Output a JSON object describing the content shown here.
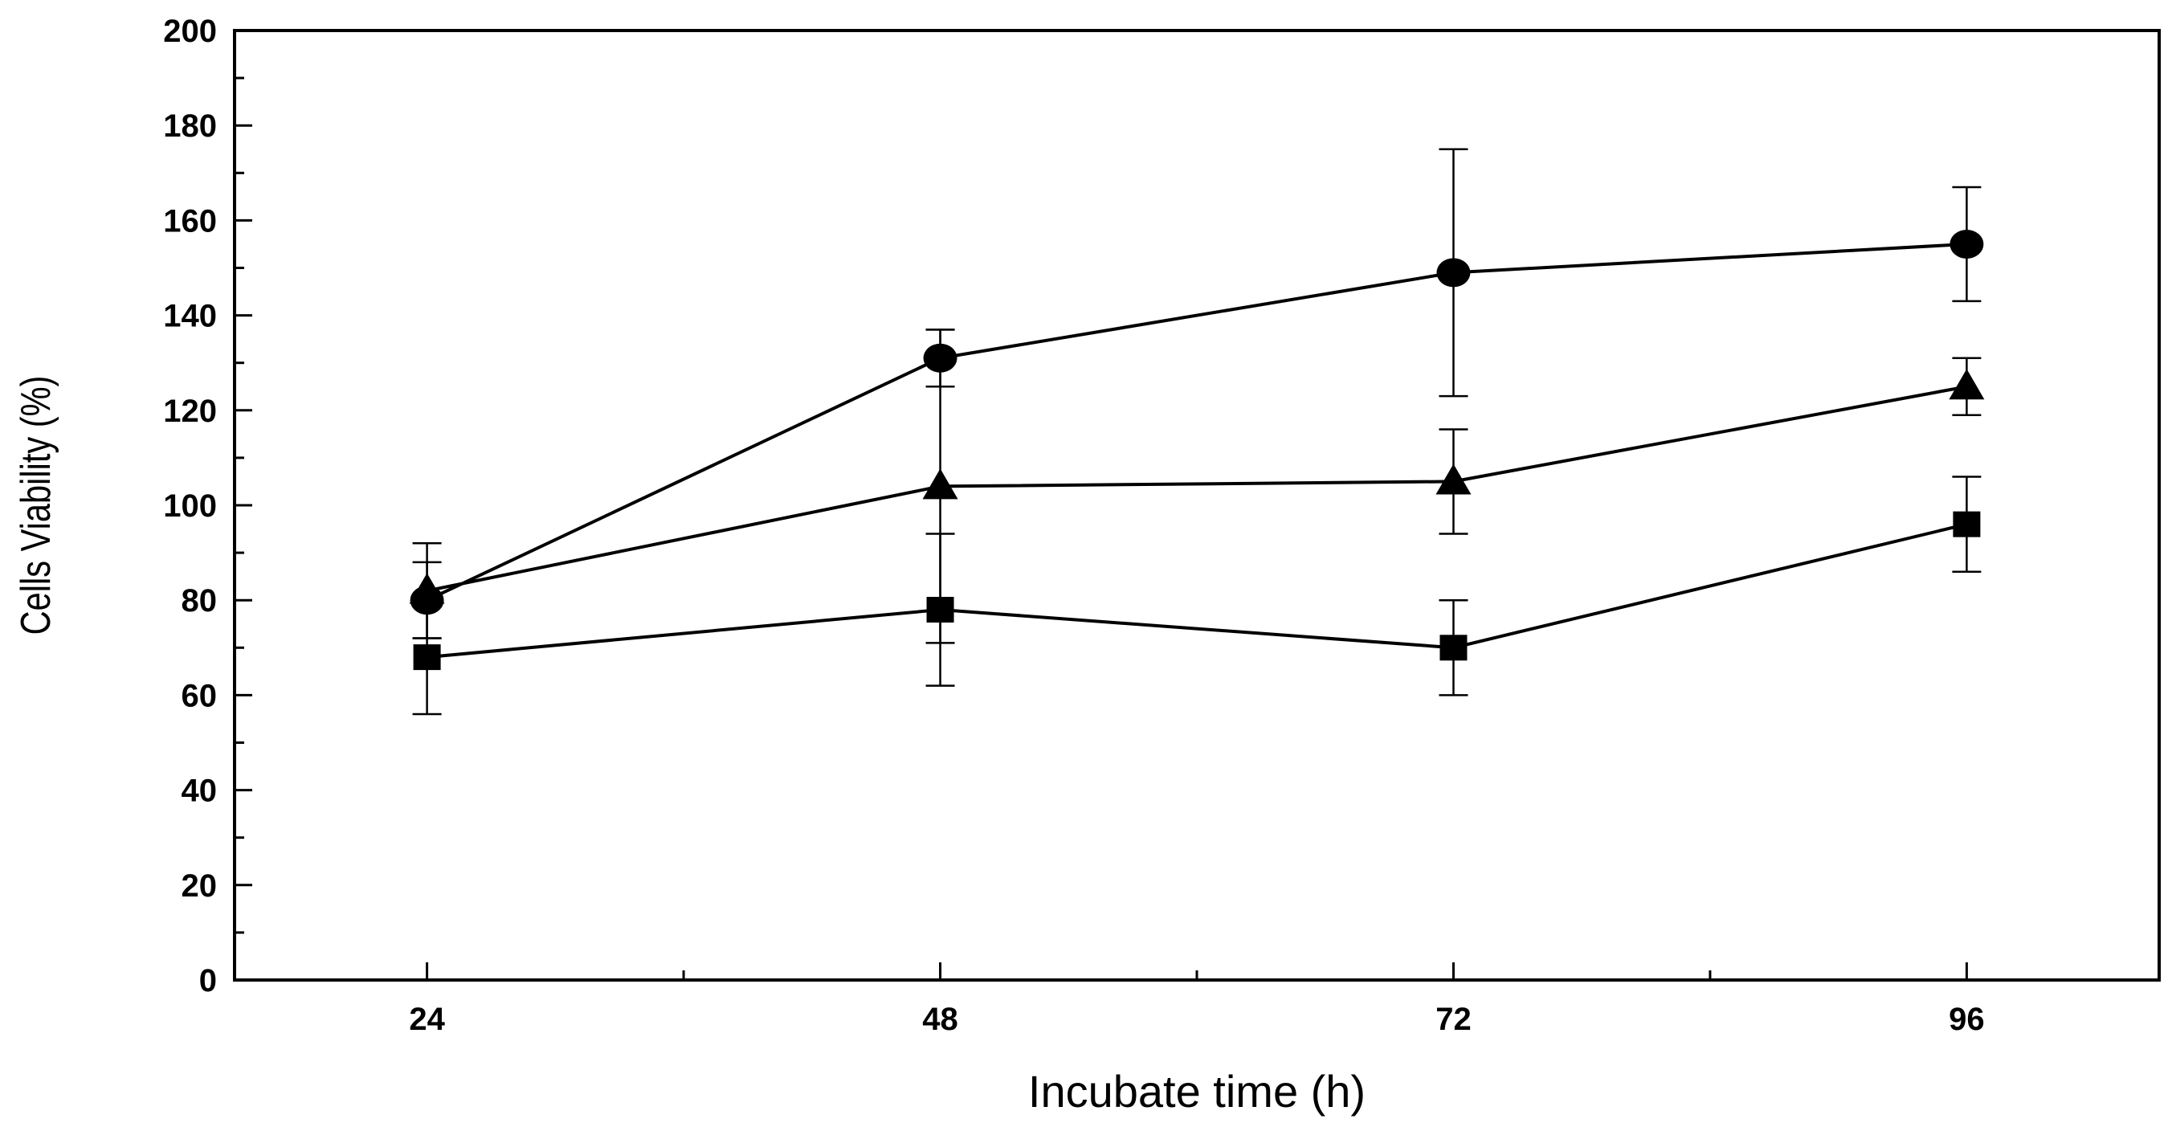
{
  "chart_data": {
    "type": "line",
    "title": "",
    "xlabel": "Incubate time (h)",
    "ylabel": "Cells Viability (%)",
    "x": [
      24,
      48,
      72,
      96
    ],
    "x_tick_labels": [
      "24",
      "48",
      "72",
      "96"
    ],
    "xlim": [
      15,
      105
    ],
    "ylim": [
      0,
      200
    ],
    "y_ticks": [
      0,
      20,
      40,
      60,
      80,
      100,
      120,
      140,
      160,
      180,
      200
    ],
    "y_tick_labels": [
      "0",
      "20",
      "40",
      "60",
      "80",
      "100",
      "120",
      "140",
      "160",
      "180",
      "200"
    ],
    "grid": false,
    "legend": "none",
    "series": [
      {
        "name": "circle series",
        "marker": "circle",
        "color": "#000000",
        "values": [
          80,
          131,
          149,
          155
        ],
        "errors": [
          8,
          6,
          26,
          12
        ]
      },
      {
        "name": "triangle series",
        "marker": "triangle",
        "color": "#000000",
        "values": [
          82,
          104,
          105,
          125
        ],
        "errors": [
          10,
          33,
          11,
          6
        ]
      },
      {
        "name": "square series",
        "marker": "square",
        "color": "#000000",
        "values": [
          68,
          78,
          70,
          96
        ],
        "errors": [
          12,
          16,
          10,
          10
        ]
      }
    ]
  }
}
